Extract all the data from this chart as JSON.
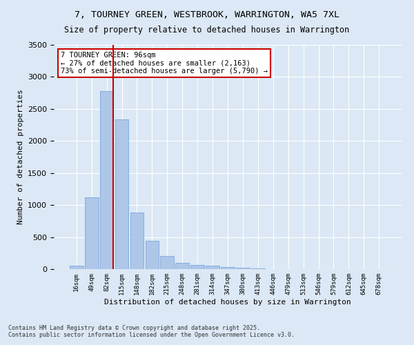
{
  "title": "7, TOURNEY GREEN, WESTBROOK, WARRINGTON, WA5 7XL",
  "subtitle": "Size of property relative to detached houses in Warrington",
  "xlabel": "Distribution of detached houses by size in Warrington",
  "ylabel": "Number of detached properties",
  "categories": [
    "16sqm",
    "49sqm",
    "82sqm",
    "115sqm",
    "148sqm",
    "182sqm",
    "215sqm",
    "248sqm",
    "281sqm",
    "314sqm",
    "347sqm",
    "380sqm",
    "413sqm",
    "446sqm",
    "479sqm",
    "513sqm",
    "546sqm",
    "579sqm",
    "612sqm",
    "645sqm",
    "678sqm"
  ],
  "values": [
    50,
    1120,
    2780,
    2340,
    880,
    440,
    200,
    100,
    70,
    50,
    30,
    20,
    10,
    5,
    5,
    2,
    1,
    0,
    0,
    0,
    0
  ],
  "bar_color": "#aec6e8",
  "bar_edge_color": "#6a9fd8",
  "background_color": "#dce8f5",
  "grid_color": "#ffffff",
  "vline_color": "#cc0000",
  "vline_bar_index": 2,
  "annotation_text": "7 TOURNEY GREEN: 96sqm\n← 27% of detached houses are smaller (2,163)\n73% of semi-detached houses are larger (5,790) →",
  "annotation_box_color": "#cc0000",
  "ylim": [
    0,
    3500
  ],
  "yticks": [
    0,
    500,
    1000,
    1500,
    2000,
    2500,
    3000,
    3500
  ],
  "footnote1": "Contains HM Land Registry data © Crown copyright and database right 2025.",
  "footnote2": "Contains public sector information licensed under the Open Government Licence v3.0.",
  "fig_facecolor": "#dce8f5"
}
